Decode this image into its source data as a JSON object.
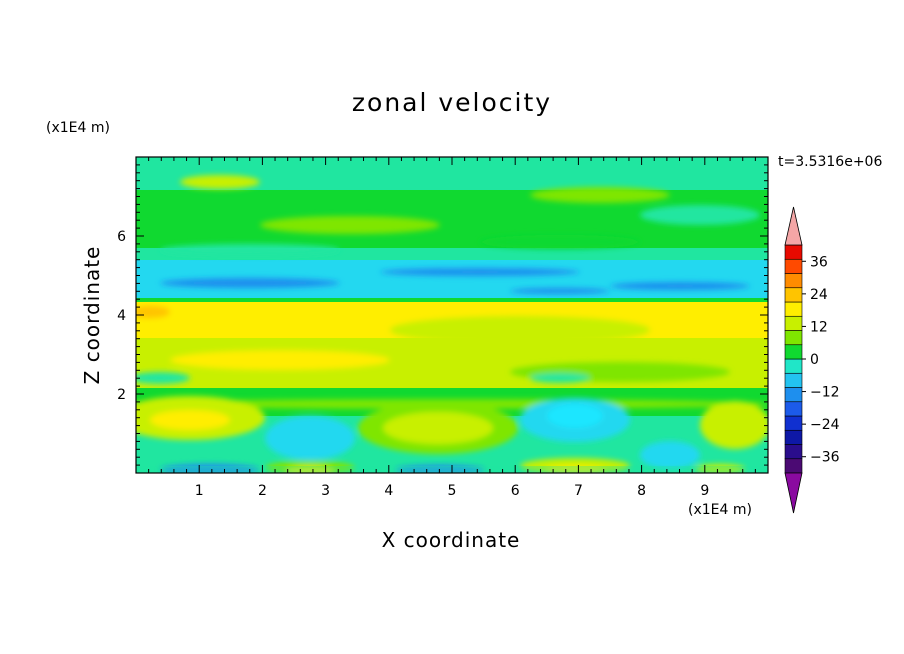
{
  "chart_data": {
    "type": "heatmap",
    "title": "zonal velocity",
    "xlabel": "X coordinate",
    "ylabel": "Z coordinate",
    "x_unit": "(x1E4 m)",
    "y_unit": "(x1E4 m)",
    "timestamp": "t=3.5316e+06",
    "xlim": [
      0,
      10
    ],
    "ylim": [
      0,
      8
    ],
    "x_ticks": [
      "1",
      "2",
      "3",
      "4",
      "5",
      "6",
      "7",
      "8",
      "9"
    ],
    "y_ticks": [
      "2",
      "4",
      "6"
    ],
    "colorbar": {
      "levels": [
        -42,
        -36,
        -30,
        -24,
        -18,
        -12,
        -6,
        0,
        6,
        12,
        18,
        24,
        30,
        36,
        42
      ],
      "tick_labels": [
        "36",
        "24",
        "12",
        "0",
        "-12",
        "-24",
        "-36"
      ],
      "colors": [
        "#4b0a73",
        "#2a0d8c",
        "#0e18a6",
        "#1030d0",
        "#1c5bea",
        "#1e8fee",
        "#23c3f0",
        "#20e6c8",
        "#10d930",
        "#7fe600",
        "#c8f000",
        "#ffee00",
        "#ffc400",
        "#ff8c00",
        "#ff4a00",
        "#e80a00"
      ],
      "over_color": "#f4a6a6",
      "under_color": "#8a0aa0"
    },
    "colors": {
      "background": "#ffffff",
      "field_base": "#10d930"
    }
  }
}
